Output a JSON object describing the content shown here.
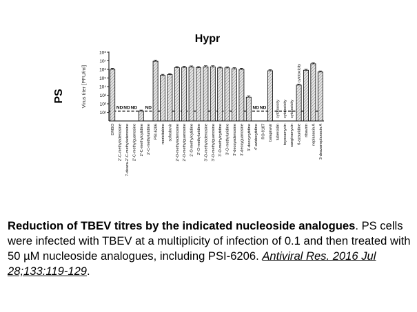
{
  "chart_data": {
    "type": "bar",
    "title": "Hypr",
    "panel_label": "PS",
    "ylabel": "Virus titer [PFU/ml]",
    "xlabel": "",
    "yscale": "log",
    "ylim": [
      1,
      100000000
    ],
    "ytick_labels": [
      "10¹",
      "10²",
      "10³",
      "10⁴",
      "10⁵",
      "10⁶",
      "10⁷",
      "10⁸"
    ],
    "detection_limit": 14,
    "grid": false,
    "bar_fill": "#d9d9d9",
    "bar_stroke": "#000000",
    "categories": [
      "DMSO",
      "2'-C-methyladenosine",
      "7-deaza-2'-C-methyladenosine",
      "2'-C-methylguanosine",
      "2'-C-methylcytidine",
      "2'-C-methyluridine",
      "PSI-6206",
      "mericitabine",
      "sofosbuvir",
      "2'-O-methyladenosine",
      "2'-O-methylguanosine",
      "2'-O-methylcytidine",
      "2'-O-methyluridine",
      "3'-O-methyladenosine",
      "3'-O-methylguanosine",
      "3'-O-methylcytidine",
      "3'-O-methyluridine",
      "3'-deoxyadenosine",
      "3'-deoxyguanosine",
      "3'-deoxycytidine",
      "4'-azidocytidine",
      "RO-9187",
      "balapiravir",
      "tubercidin",
      "toyocamycin",
      "sangivamycin",
      "6-azauridine",
      "ribavirin",
      "neplanocin A",
      "3-deazaneplanocin A"
    ],
    "values": [
      1000000,
      null,
      null,
      null,
      14,
      null,
      9000000,
      200000,
      250000,
      1600000,
      1700000,
      1900000,
      1600000,
      2000000,
      2000000,
      1500000,
      1500000,
      1200000,
      1000000,
      600,
      null,
      null,
      700000,
      null,
      null,
      null,
      15000,
      800000,
      4500000,
      500000
    ],
    "bar_annotations": [
      "",
      "ND",
      "ND",
      "ND",
      "",
      "ND",
      "",
      "",
      "",
      "",
      "",
      "",
      "",
      "",
      "",
      "",
      "",
      "",
      "",
      "",
      "ND",
      "ND",
      "",
      "cytotoxicity",
      "cytotoxicity",
      "cytotoxicity",
      "cytotoxicity",
      "",
      "",
      ""
    ]
  },
  "caption": {
    "bold": "Reduction of TBEV titres by the indicated nucleoside analogues",
    "text": ". PS cells were infected with TBEV at a multiplicity of infection of 0.1 and then treated with 50 µM nucleoside analogues, including PSI-6206. ",
    "link": "Antiviral Res. 2016 Jul 28;133:119-129",
    "end": "."
  }
}
